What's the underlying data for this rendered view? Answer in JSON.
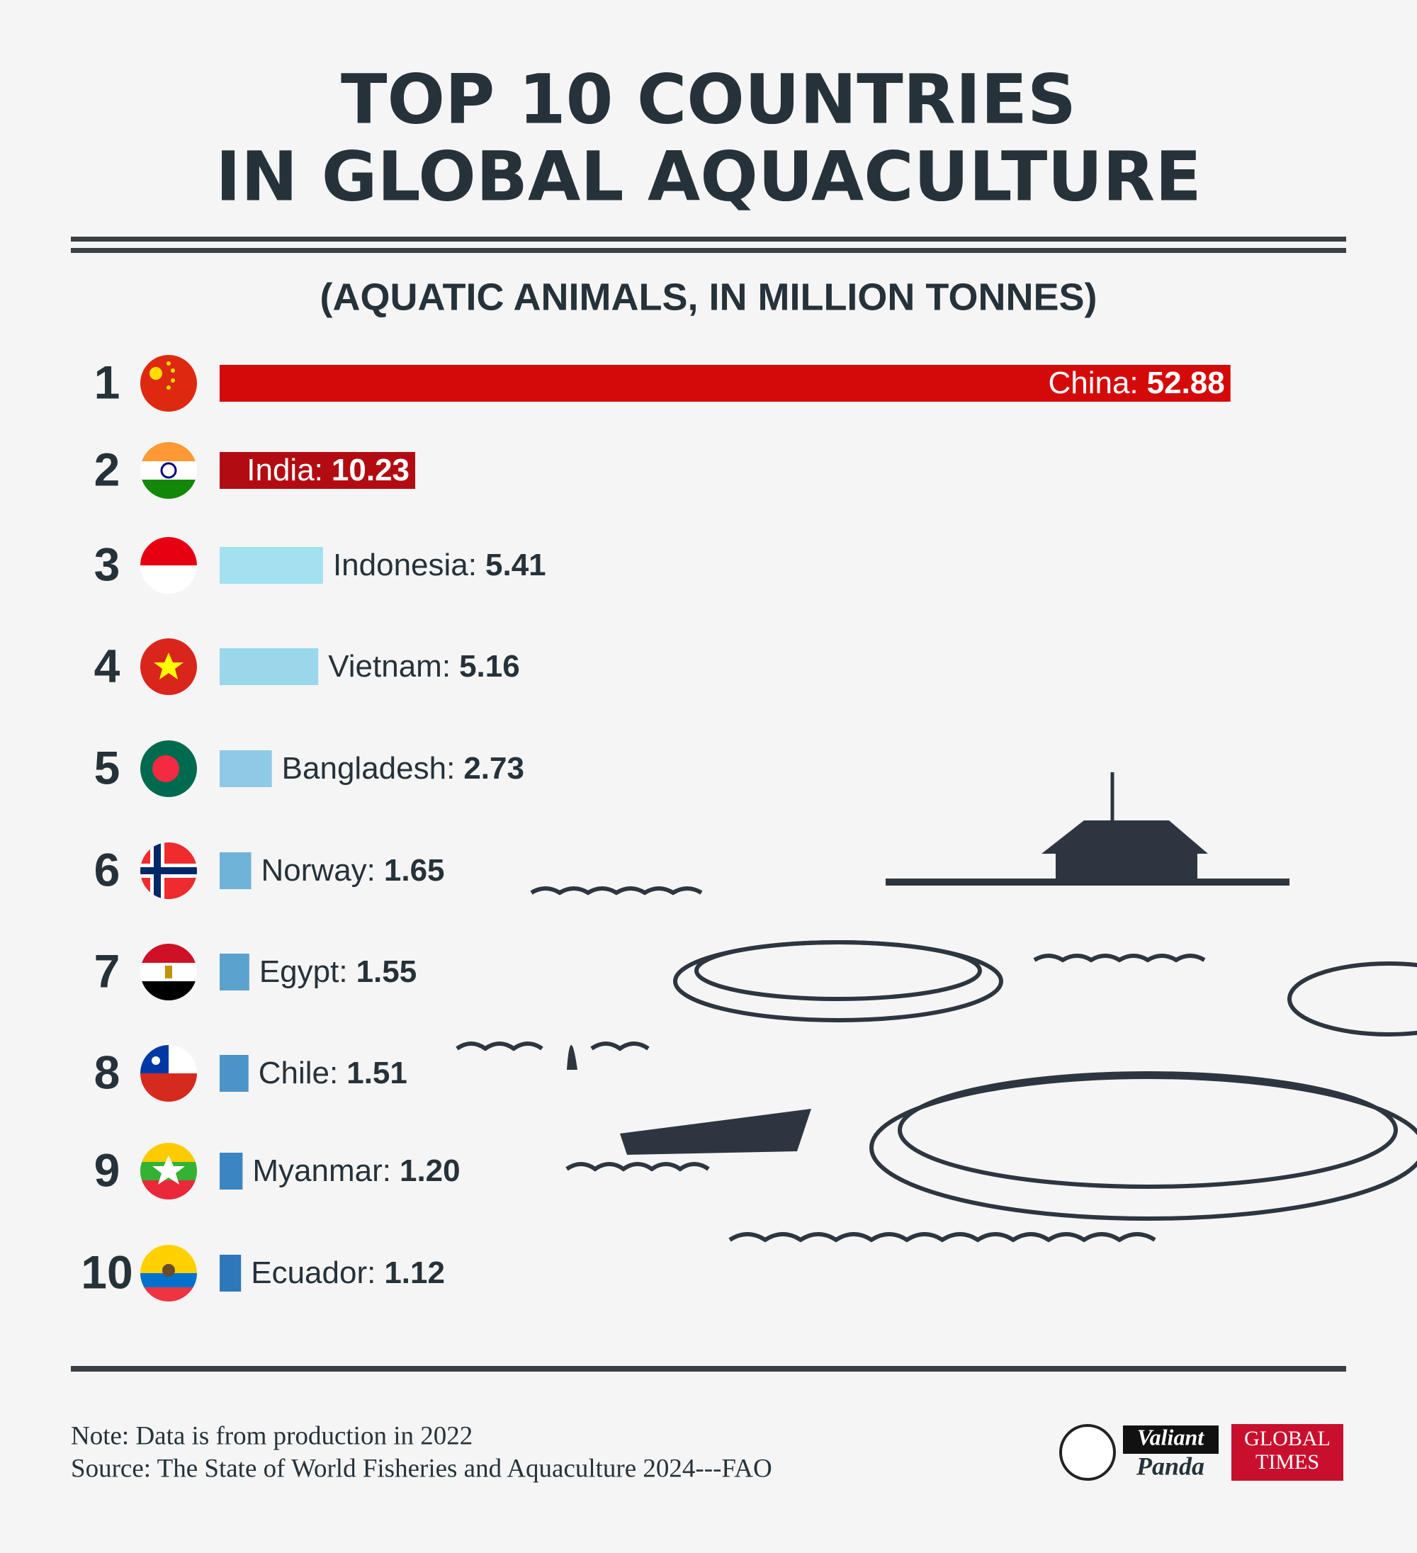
{
  "chart_data": {
    "type": "hbar",
    "title": [
      "TOP 10 COUNTRIES",
      "IN GLOBAL AQUACULTURE"
    ],
    "subtitle": "(AQUATIC ANIMALS, IN MILLION TONNES)",
    "ranks": [
      1,
      2,
      3,
      4,
      5,
      6,
      7,
      8,
      9,
      10
    ],
    "categories": [
      "China:",
      "India:",
      "Indonesia:",
      "Vietnam:",
      "Bangladesh:",
      "Norway:",
      "Egypt:",
      "Chile:",
      "Myanmar:",
      "Ecuador:"
    ],
    "values": [
      52.88,
      10.23,
      5.41,
      5.16,
      2.73,
      1.65,
      1.55,
      1.51,
      1.2,
      1.12
    ],
    "value_labels": [
      "52.88",
      "10.23",
      "5.41",
      "5.16",
      "2.73",
      "1.65",
      "1.55",
      "1.51",
      "1.20",
      "1.12"
    ],
    "colors": [
      "#d40a0a",
      "#b20c12",
      "#a3e1f0",
      "#9ad7ea",
      "#8ecae6",
      "#6fb3d8",
      "#5ba2cf",
      "#4a94c9",
      "#3b86c2",
      "#2e77bb"
    ],
    "xlim": [
      0,
      53
    ],
    "note": "Note: Data is from production in 2022",
    "source": "Source: The State of World Fisheries and Aquaculture 2024---FAO"
  },
  "logos": [
    "Valiant",
    "Panda",
    "GLOBAL",
    "TIMES"
  ]
}
